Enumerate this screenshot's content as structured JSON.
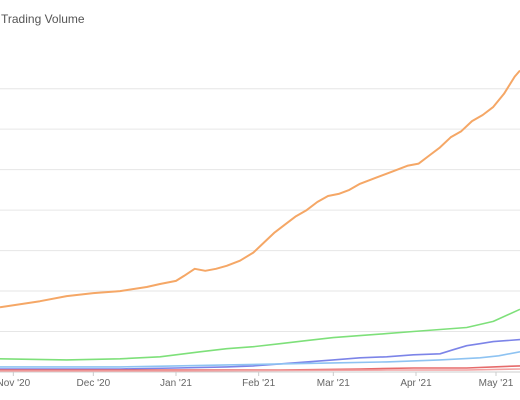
{
  "chart_data": {
    "type": "line",
    "title": "Trading Volume",
    "xlabel": "",
    "ylabel": "",
    "grid": true,
    "x_tick_labels": [
      "Nov '20",
      "Dec '20",
      "Jan '21",
      "Feb '21",
      "Mar '21",
      "Apr '21",
      "May '21"
    ],
    "x_tick_positions": [
      0,
      30,
      61,
      92,
      120,
      151,
      181
    ],
    "x_range": [
      -5,
      190
    ],
    "ylim": [
      0,
      340
    ],
    "gridlines": [
      40,
      80,
      120,
      160,
      200,
      240,
      280
    ],
    "series": [
      {
        "color": "#f5a766",
        "x": [
          -5,
          10,
          20,
          30,
          40,
          50,
          55,
          61,
          64,
          68,
          72,
          76,
          80,
          85,
          90,
          94,
          98,
          102,
          106,
          110,
          114,
          118,
          122,
          126,
          130,
          136,
          142,
          148,
          152,
          156,
          160,
          164,
          168,
          172,
          176,
          180,
          184,
          188,
          190
        ],
        "y": [
          64,
          70,
          75,
          78,
          80,
          84,
          87,
          90,
          95,
          102,
          100,
          102,
          105,
          110,
          118,
          128,
          138,
          146,
          154,
          160,
          168,
          174,
          176,
          180,
          186,
          192,
          198,
          204,
          206,
          214,
          222,
          232,
          238,
          248,
          254,
          262,
          275,
          292,
          298
        ]
      },
      {
        "color": "#7ee07a",
        "x": [
          -5,
          20,
          40,
          55,
          61,
          70,
          80,
          90,
          100,
          110,
          120,
          130,
          140,
          150,
          160,
          170,
          180,
          190
        ],
        "y": [
          13,
          12,
          13,
          15,
          17,
          20,
          23,
          25,
          28,
          31,
          34,
          36,
          38,
          40,
          42,
          44,
          50,
          62
        ]
      },
      {
        "color": "#7c84e8",
        "x": [
          -5,
          40,
          61,
          80,
          90,
          100,
          110,
          120,
          130,
          140,
          150,
          160,
          165,
          170,
          175,
          180,
          185,
          190
        ],
        "y": [
          3,
          3,
          4,
          5,
          6,
          8,
          10,
          12,
          14,
          15,
          17,
          18,
          22,
          26,
          28,
          30,
          31,
          32
        ]
      },
      {
        "color": "#8ec3f2",
        "x": [
          -5,
          40,
          61,
          80,
          100,
          120,
          140,
          160,
          175,
          182,
          190
        ],
        "y": [
          5,
          5,
          6,
          7,
          8,
          9,
          10,
          12,
          14,
          16,
          20
        ]
      },
      {
        "color": "#e66b6b",
        "x": [
          -5,
          60,
          100,
          130,
          150,
          160,
          170,
          180,
          190
        ],
        "y": [
          2,
          2,
          2,
          3,
          4,
          4,
          4,
          5,
          6
        ]
      },
      {
        "color": "#f2a3a3",
        "x": [
          -5,
          60,
          100,
          140,
          170,
          190
        ],
        "y": [
          1,
          1,
          1.5,
          2,
          2,
          3
        ]
      }
    ]
  }
}
